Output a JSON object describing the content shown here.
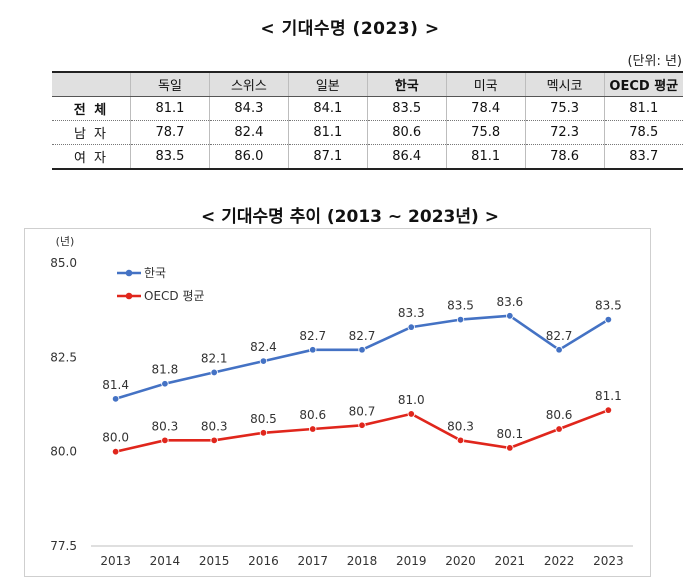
{
  "title": "<  기대수명 (2023) >",
  "unit": "(단위: 년)",
  "table": {
    "columns": [
      "",
      "독일",
      "스위스",
      "일본",
      "한국",
      "미국",
      "멕시코",
      "OECD 평균"
    ],
    "rows": [
      {
        "label": "전 체",
        "values": [
          "81.1",
          "84.3",
          "84.1",
          "83.5",
          "78.4",
          "75.3",
          "81.1"
        ]
      },
      {
        "label": "남 자",
        "values": [
          "78.7",
          "82.4",
          "81.1",
          "80.6",
          "75.8",
          "72.3",
          "78.5"
        ]
      },
      {
        "label": "여 자",
        "values": [
          "83.5",
          "86.0",
          "87.1",
          "86.4",
          "81.1",
          "78.6",
          "83.7"
        ]
      }
    ]
  },
  "chart_title": "< 기대수명 추이 (2013 ~ 2023년) >",
  "chart_data": {
    "type": "line",
    "title": "< 기대수명 추이 (2013 ~ 2023년) >",
    "ylabel": "(년)",
    "xlabel": "",
    "ylim": [
      77.5,
      85.0
    ],
    "yticks": [
      "85.0",
      "82.5",
      "80.0",
      "77.5"
    ],
    "ytick_values": [
      85.0,
      82.5,
      80.0,
      77.5
    ],
    "x": [
      "2013",
      "2014",
      "2015",
      "2016",
      "2017",
      "2018",
      "2019",
      "2020",
      "2021",
      "2022",
      "2023"
    ],
    "series": [
      {
        "name": "한국",
        "color": "#4472c4",
        "values": [
          81.4,
          81.8,
          82.1,
          82.4,
          82.7,
          82.7,
          83.3,
          83.5,
          83.6,
          82.7,
          83.5
        ],
        "labels": [
          "81.4",
          "81.8",
          "82.1",
          "82.4",
          "82.7",
          "82.7",
          "83.3",
          "83.5",
          "83.6",
          "82.7",
          "83.5"
        ]
      },
      {
        "name": "OECD 평균",
        "color": "#e0261c",
        "values": [
          80.0,
          80.3,
          80.3,
          80.5,
          80.6,
          80.7,
          81.0,
          80.3,
          80.1,
          80.6,
          81.1
        ],
        "labels": [
          "80.0",
          "80.3",
          "80.3",
          "80.5",
          "80.6",
          "80.7",
          "81.0",
          "80.3",
          "80.1",
          "80.6",
          "81.1"
        ]
      }
    ],
    "legend_position": "top-left",
    "grid": false
  }
}
